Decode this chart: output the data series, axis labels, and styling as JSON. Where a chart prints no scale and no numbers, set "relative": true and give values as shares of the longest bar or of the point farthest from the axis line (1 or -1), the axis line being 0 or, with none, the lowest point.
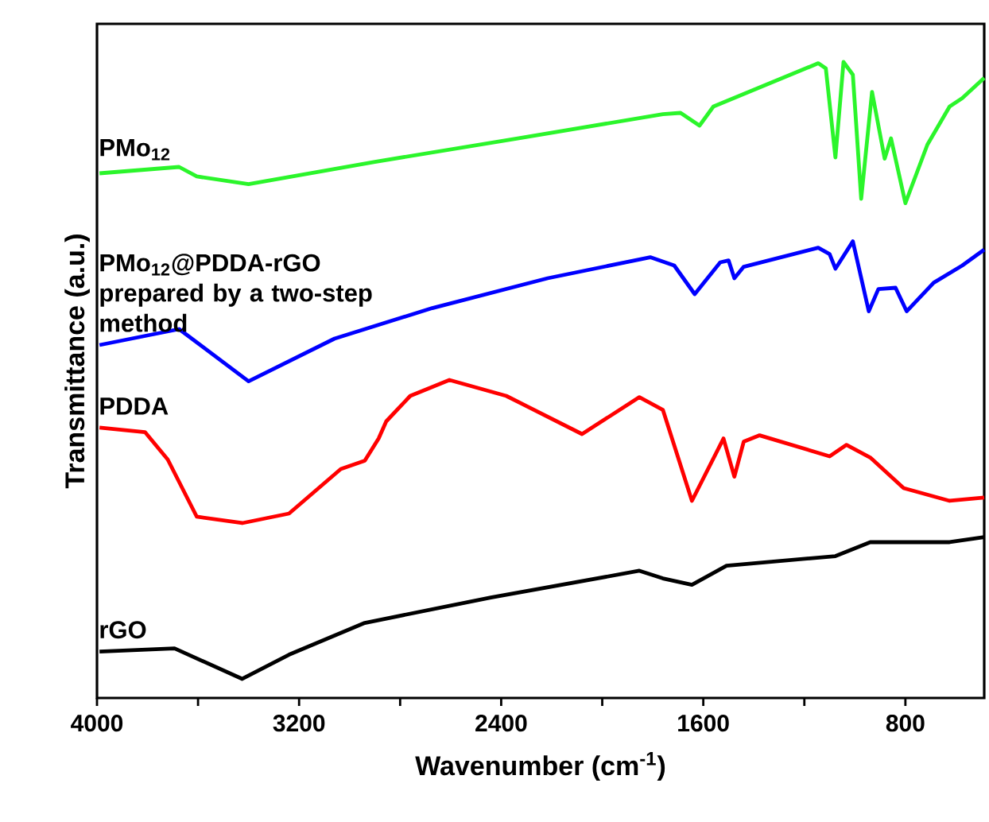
{
  "chart_data": {
    "type": "line",
    "relative": true,
    "xlabel": "Wavenumber (cm$^{-1}$)",
    "ylabel": "Transmittance (a.u.)",
    "xlim": [
      4000,
      488
    ],
    "xticks": [
      4000,
      {
        "value": 3600,
        "label": null
      },
      3200,
      {
        "value": 2800,
        "label": null
      },
      2400,
      {
        "value": 2000,
        "label": null
      },
      1600,
      {
        "value": 1200,
        "label": null
      },
      800
    ],
    "series": [
      {
        "name": "PMo$_{12}$",
        "color": "#2bf52b",
        "x": [
          3990,
          3675,
          3605,
          3400,
          2900,
          2330,
          1760,
          1690,
          1615,
          1560,
          1145,
          1115,
          1077,
          1045,
          1008,
          975,
          932,
          882,
          857,
          800,
          713,
          625,
          575,
          488
        ],
        "values": [
          0.825,
          0.835,
          0.82,
          0.808,
          0.843,
          0.88,
          0.918,
          0.92,
          0.9,
          0.93,
          0.998,
          0.99,
          0.85,
          1.0,
          0.98,
          0.785,
          0.953,
          0.848,
          0.88,
          0.778,
          0.87,
          0.93,
          0.943,
          0.975
        ]
      },
      {
        "name": "PMo$_{12}$@PDDA-rGO prepared by a two-step method",
        "color": "#0000ff",
        "x": [
          3990,
          3675,
          3400,
          3060,
          2673,
          2216,
          1810,
          1715,
          1634,
          1533,
          1500,
          1477,
          1440,
          1145,
          1100,
          1077,
          1008,
          945,
          907,
          839,
          795,
          688,
          575,
          488
        ],
        "values": [
          0.555,
          0.58,
          0.498,
          0.565,
          0.613,
          0.66,
          0.693,
          0.68,
          0.635,
          0.685,
          0.688,
          0.66,
          0.678,
          0.708,
          0.698,
          0.675,
          0.718,
          0.608,
          0.643,
          0.645,
          0.608,
          0.653,
          0.68,
          0.705
        ]
      },
      {
        "name": "PDDA",
        "color": "#ff0000",
        "x": [
          3990,
          3810,
          3720,
          3605,
          3425,
          3240,
          3035,
          2940,
          2885,
          2855,
          2760,
          2605,
          2380,
          2080,
          1853,
          1760,
          1645,
          1520,
          1477,
          1440,
          1377,
          1100,
          1033,
          939,
          807,
          625,
          488
        ],
        "values": [
          0.425,
          0.418,
          0.375,
          0.285,
          0.275,
          0.29,
          0.36,
          0.373,
          0.408,
          0.435,
          0.475,
          0.5,
          0.475,
          0.415,
          0.473,
          0.453,
          0.31,
          0.408,
          0.348,
          0.403,
          0.413,
          0.38,
          0.398,
          0.378,
          0.33,
          0.31,
          0.315
        ]
      },
      {
        "name": "rGO",
        "color": "#000000",
        "x": [
          3990,
          3693,
          3425,
          3240,
          2940,
          2441,
          1853,
          1760,
          1645,
          1508,
          1077,
          939,
          625,
          488
        ],
        "values": [
          0.073,
          0.078,
          0.03,
          0.068,
          0.118,
          0.158,
          0.2,
          0.188,
          0.178,
          0.208,
          0.223,
          0.245,
          0.245,
          0.253
        ]
      }
    ]
  }
}
